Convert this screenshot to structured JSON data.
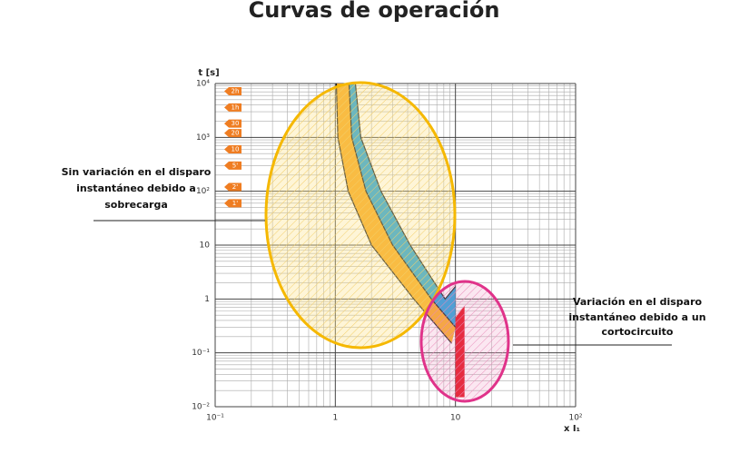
{
  "chart_data": {
    "type": "log-curves",
    "title": "Curvas de operación",
    "ylabel": "t [s]",
    "xlabel": "x I₁",
    "xlim": [
      0.1,
      100
    ],
    "ylim": [
      0.01,
      10000
    ],
    "xscale": "log",
    "yscale": "log",
    "grid": true,
    "xticks": [
      {
        "value": 0.1,
        "label": "10⁻¹"
      },
      1,
      10,
      {
        "value": 100,
        "label": "10²"
      }
    ],
    "yticks": [
      {
        "value": 0.01,
        "label": "10⁻²"
      },
      {
        "value": 0.1,
        "label": "10⁻¹"
      },
      1,
      10,
      {
        "value": 100,
        "label": "10²"
      },
      {
        "value": 1000,
        "label": "10³"
      },
      {
        "value": 10000,
        "label": "10⁴"
      }
    ],
    "time_markers": [
      {
        "value": 7200,
        "label": "2h"
      },
      {
        "value": 3600,
        "label": "1h"
      },
      {
        "value": 1800,
        "label": "30"
      },
      {
        "value": 1200,
        "label": "20"
      },
      {
        "value": 600,
        "label": "10"
      },
      {
        "value": 300,
        "label": "5'"
      },
      {
        "value": 120,
        "label": "2'"
      },
      {
        "value": 60,
        "label": "1'"
      }
    ],
    "marker_color": "#ef7d22",
    "curves": [
      {
        "x": [
          1.02,
          1.05,
          1.28,
          2.0,
          4.5,
          9.3
        ],
        "values": [
          10000,
          1000,
          100,
          10,
          1,
          0.15
        ]
      },
      {
        "x": [
          1.3,
          1.37,
          1.8,
          3.0,
          6.3,
          10
        ],
        "values": [
          10000,
          1000,
          100,
          10,
          1,
          0.3
        ]
      },
      {
        "x": [
          1.47,
          1.63,
          2.4,
          4.2,
          8.2,
          10
        ],
        "values": [
          10000,
          1000,
          100,
          10,
          1,
          1.7
        ]
      }
    ],
    "band_colors": [
      "#f7a81b",
      "#1e9fd8"
    ],
    "instantaneous": {
      "color": "#e30613",
      "x": [
        10,
        10,
        11.9,
        11.9
      ],
      "values": [
        0.015,
        0.45,
        0.75,
        0.015
      ]
    },
    "annotations": {
      "left": [
        "Sin variación en el disparo",
        "instantáneo debido a",
        "sobrecarga"
      ],
      "right": [
        "Variación en el disparo",
        "instantáneo debido a un",
        "cortocircuito"
      ]
    }
  }
}
